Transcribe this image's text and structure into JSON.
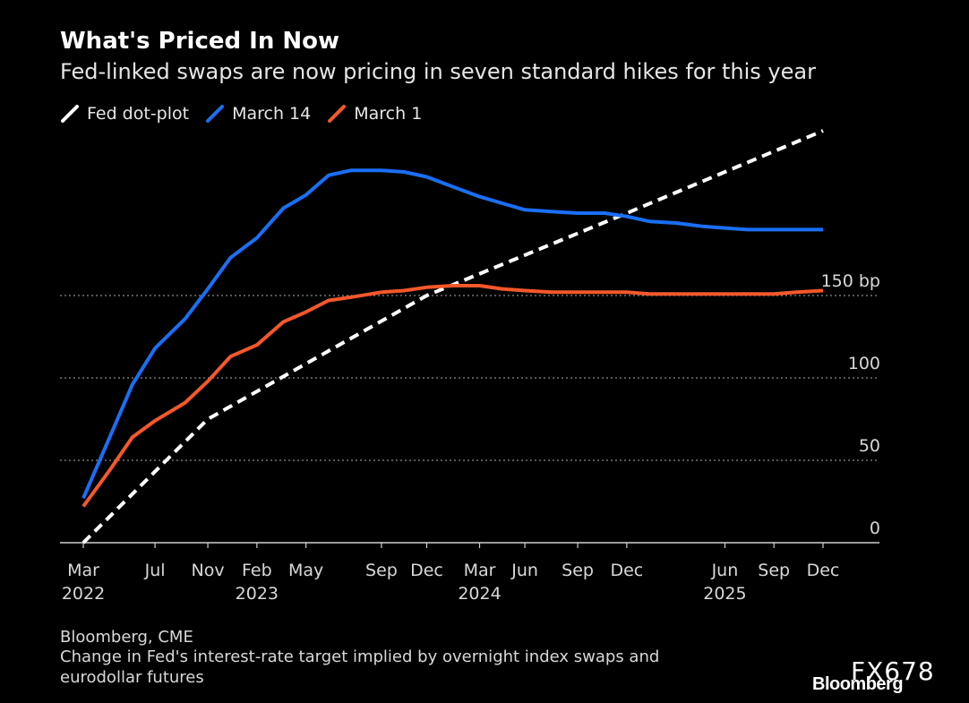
{
  "header": {
    "title": "What's Priced In Now",
    "subtitle": "Fed-linked swaps are now pricing in seven standard hikes for this year"
  },
  "legend": [
    {
      "label": "Fed dot-plot",
      "color": "#ffffff",
      "style": "dashed"
    },
    {
      "label": "March 14",
      "color": "#1a6ff5",
      "style": "solid"
    },
    {
      "label": "March 1",
      "color": "#f5582a",
      "style": "solid"
    }
  ],
  "footer": {
    "source": "Bloomberg, CME",
    "note_line1": "Change in Fed's interest-rate target implied by overnight index swaps and",
    "note_line2": "eurodollar futures",
    "watermark": "FX678",
    "brand": "Bloomberg"
  },
  "chart_data": {
    "type": "line",
    "title": "What's Priced In Now",
    "subtitle": "Fed-linked swaps are now pricing in seven standard hikes for this year",
    "x_axis": {
      "type": "date",
      "range": [
        "2022-03-16",
        "2025-12-17"
      ],
      "ticks": [
        {
          "date": "2022-03-16",
          "label": "Mar",
          "year": "2022"
        },
        {
          "date": "2022-07-27",
          "label": "Jul",
          "year": ""
        },
        {
          "date": "2022-11-02",
          "label": "Nov",
          "year": ""
        },
        {
          "date": "2023-02-01",
          "label": "Feb",
          "year": "2023"
        },
        {
          "date": "2023-05-03",
          "label": "May",
          "year": ""
        },
        {
          "date": "2023-09-20",
          "label": "Sep",
          "year": ""
        },
        {
          "date": "2023-12-13",
          "label": "Dec",
          "year": ""
        },
        {
          "date": "2024-03-20",
          "label": "Mar",
          "year": "2024"
        },
        {
          "date": "2024-06-12",
          "label": "Jun",
          "year": ""
        },
        {
          "date": "2024-09-18",
          "label": "Sep",
          "year": ""
        },
        {
          "date": "2024-12-18",
          "label": "Dec",
          "year": ""
        },
        {
          "date": "2025-06-18",
          "label": "Jun",
          "year": "2025"
        },
        {
          "date": "2025-09-17",
          "label": "Sep",
          "year": ""
        },
        {
          "date": "2025-12-17",
          "label": "Dec",
          "year": ""
        }
      ]
    },
    "y_axis": {
      "range": [
        0,
        225
      ],
      "unit": "bp",
      "ticks": [
        {
          "value": 0,
          "label": "0"
        },
        {
          "value": 50,
          "label": "50"
        },
        {
          "value": 100,
          "label": "100"
        },
        {
          "value": 150,
          "label": "150 bp"
        }
      ],
      "gridlines": "dotted"
    },
    "series": [
      {
        "name": "Fed dot-plot",
        "color": "#ffffff",
        "style": "dashed",
        "points": [
          {
            "x": "2022-03-16",
            "y": 0
          },
          {
            "x": "2022-11-02",
            "y": 75
          },
          {
            "x": "2023-12-13",
            "y": 150
          },
          {
            "x": "2024-12-18",
            "y": 200
          },
          {
            "x": "2025-12-17",
            "y": 250
          }
        ]
      },
      {
        "name": "March 14",
        "color": "#1a6ff5",
        "style": "solid",
        "points": [
          {
            "x": "2022-03-16",
            "y": 27
          },
          {
            "x": "2022-05-04",
            "y": 64
          },
          {
            "x": "2022-06-15",
            "y": 96
          },
          {
            "x": "2022-07-27",
            "y": 118
          },
          {
            "x": "2022-09-21",
            "y": 136
          },
          {
            "x": "2022-11-02",
            "y": 154
          },
          {
            "x": "2022-12-14",
            "y": 173
          },
          {
            "x": "2023-02-01",
            "y": 185
          },
          {
            "x": "2023-03-22",
            "y": 203
          },
          {
            "x": "2023-05-03",
            "y": 211
          },
          {
            "x": "2023-06-14",
            "y": 223
          },
          {
            "x": "2023-07-26",
            "y": 226
          },
          {
            "x": "2023-09-20",
            "y": 226
          },
          {
            "x": "2023-11-01",
            "y": 225
          },
          {
            "x": "2023-12-13",
            "y": 222
          },
          {
            "x": "2024-01-31",
            "y": 216
          },
          {
            "x": "2024-03-20",
            "y": 210
          },
          {
            "x": "2024-05-01",
            "y": 206
          },
          {
            "x": "2024-06-12",
            "y": 202
          },
          {
            "x": "2024-07-31",
            "y": 201
          },
          {
            "x": "2024-09-18",
            "y": 200
          },
          {
            "x": "2024-11-07",
            "y": 200
          },
          {
            "x": "2024-12-18",
            "y": 198
          },
          {
            "x": "2025-01-29",
            "y": 195
          },
          {
            "x": "2025-03-19",
            "y": 194
          },
          {
            "x": "2025-05-07",
            "y": 192
          },
          {
            "x": "2025-06-18",
            "y": 191
          },
          {
            "x": "2025-07-30",
            "y": 190
          },
          {
            "x": "2025-09-17",
            "y": 190
          },
          {
            "x": "2025-10-29",
            "y": 190
          },
          {
            "x": "2025-12-17",
            "y": 190
          }
        ]
      },
      {
        "name": "March 1",
        "color": "#f5582a",
        "style": "solid",
        "points": [
          {
            "x": "2022-03-16",
            "y": 22
          },
          {
            "x": "2022-05-04",
            "y": 44
          },
          {
            "x": "2022-06-15",
            "y": 64
          },
          {
            "x": "2022-07-27",
            "y": 74
          },
          {
            "x": "2022-09-21",
            "y": 85
          },
          {
            "x": "2022-11-02",
            "y": 98
          },
          {
            "x": "2022-12-14",
            "y": 113
          },
          {
            "x": "2023-02-01",
            "y": 120
          },
          {
            "x": "2023-03-22",
            "y": 134
          },
          {
            "x": "2023-05-03",
            "y": 140
          },
          {
            "x": "2023-06-14",
            "y": 147
          },
          {
            "x": "2023-07-26",
            "y": 149
          },
          {
            "x": "2023-09-20",
            "y": 152
          },
          {
            "x": "2023-11-01",
            "y": 153
          },
          {
            "x": "2023-12-13",
            "y": 155
          },
          {
            "x": "2024-01-31",
            "y": 156
          },
          {
            "x": "2024-03-20",
            "y": 156
          },
          {
            "x": "2024-05-01",
            "y": 154
          },
          {
            "x": "2024-06-12",
            "y": 153
          },
          {
            "x": "2024-07-31",
            "y": 152
          },
          {
            "x": "2024-09-18",
            "y": 152
          },
          {
            "x": "2024-11-07",
            "y": 152
          },
          {
            "x": "2024-12-18",
            "y": 152
          },
          {
            "x": "2025-01-29",
            "y": 151
          },
          {
            "x": "2025-03-19",
            "y": 151
          },
          {
            "x": "2025-05-07",
            "y": 151
          },
          {
            "x": "2025-06-18",
            "y": 151
          },
          {
            "x": "2025-07-30",
            "y": 151
          },
          {
            "x": "2025-09-17",
            "y": 151
          },
          {
            "x": "2025-10-29",
            "y": 152
          },
          {
            "x": "2025-12-17",
            "y": 153
          }
        ]
      }
    ]
  }
}
